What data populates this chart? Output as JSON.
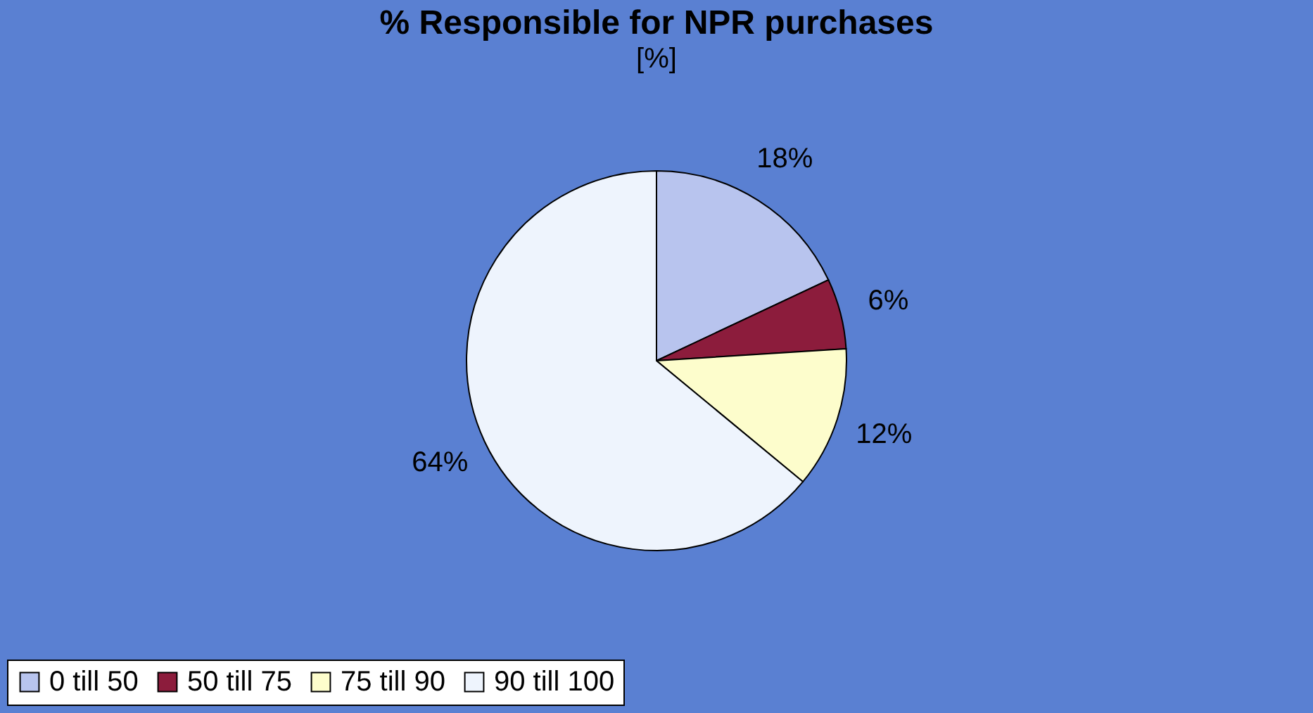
{
  "chart_data": {
    "type": "pie",
    "title": "% Responsible for NPR purchases",
    "subtitle": "[%]",
    "categories": [
      "0 till 50",
      "50 till 75",
      "75 till 90",
      "90 till 100"
    ],
    "values": [
      18,
      6,
      12,
      64
    ],
    "value_labels": [
      "18%",
      "6%",
      "12%",
      "64%"
    ],
    "colors": [
      "#b8c4ee",
      "#8c1c3c",
      "#fdfdcc",
      "#eef4fd"
    ],
    "legend": "bottom"
  }
}
